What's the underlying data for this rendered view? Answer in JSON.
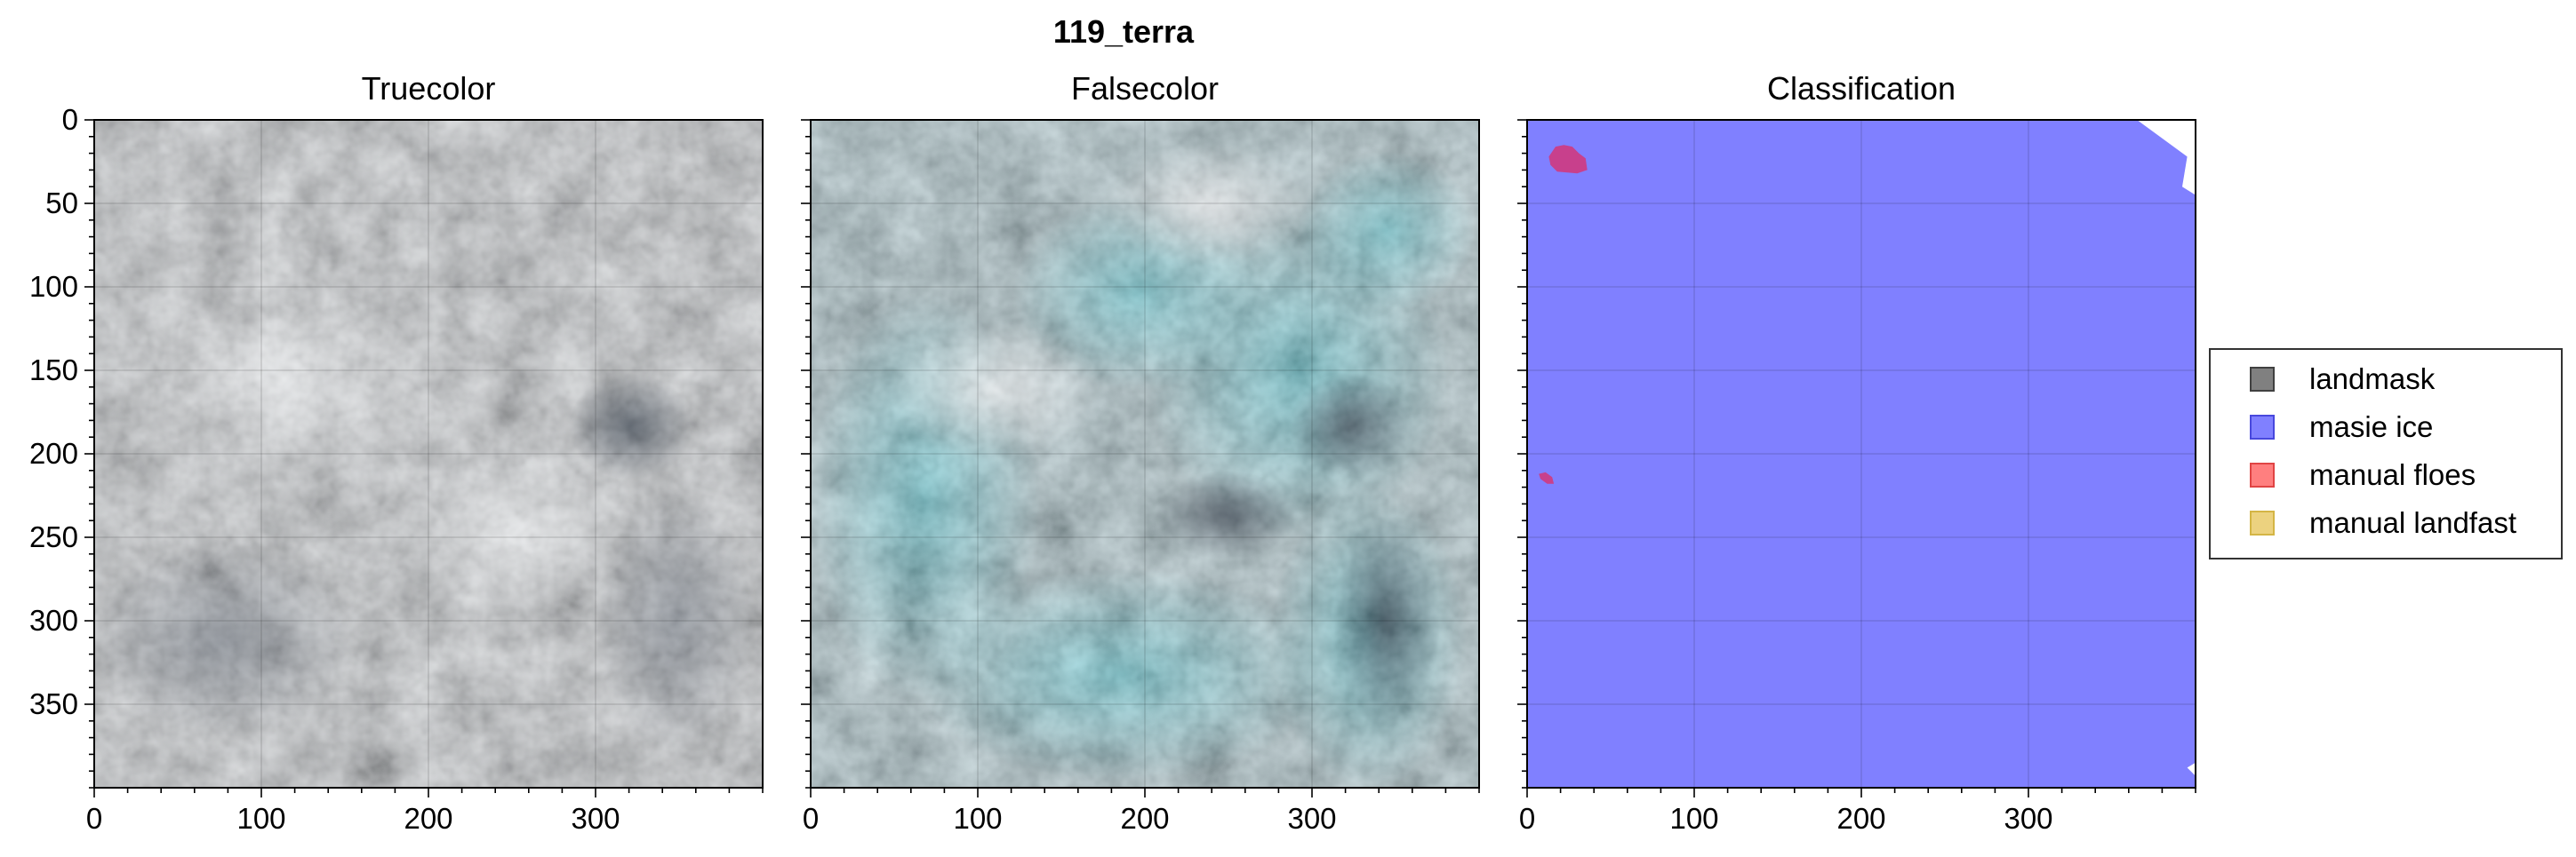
{
  "figure": {
    "suptitle": "119_terra"
  },
  "chart_data": [
    {
      "type": "heatmap",
      "title": "Truecolor",
      "xlim": [
        0,
        400
      ],
      "ylim": [
        400,
        0
      ],
      "xticks": [
        0,
        100,
        200,
        300
      ],
      "yticks": [
        0,
        50,
        100,
        150,
        200,
        250,
        300,
        350
      ],
      "show_xtick_labels": true,
      "show_ytick_labels": true,
      "grid": true,
      "image": "truecolor satellite image"
    },
    {
      "type": "heatmap",
      "title": "Falsecolor",
      "xlim": [
        0,
        400
      ],
      "ylim": [
        400,
        0
      ],
      "xticks": [
        0,
        100,
        200,
        300
      ],
      "yticks": [
        0,
        50,
        100,
        150,
        200,
        250,
        300,
        350
      ],
      "show_xtick_labels": true,
      "show_ytick_labels": false,
      "grid": true,
      "image": "falsecolor satellite image"
    },
    {
      "type": "heatmap",
      "title": "Classification",
      "xlim": [
        0,
        400
      ],
      "ylim": [
        400,
        0
      ],
      "xticks": [
        0,
        100,
        200,
        300
      ],
      "yticks": [
        0,
        50,
        100,
        150,
        200,
        250,
        300,
        350
      ],
      "show_xtick_labels": true,
      "show_ytick_labels": false,
      "grid": true,
      "regions": [
        {
          "class": "masie ice",
          "color": "#8080ff",
          "polygon": [
            [
              0,
              0
            ],
            [
              365,
              0
            ],
            [
              395,
              22
            ],
            [
              392,
              40
            ],
            [
              400,
              45
            ],
            [
              400,
              350
            ],
            [
              385,
              335
            ],
            [
              373,
              330
            ],
            [
              395,
              285
            ],
            [
              400,
              280
            ],
            [
              400,
              385
            ],
            [
              395,
              388
            ],
            [
              400,
              393
            ],
            [
              400,
              400
            ],
            [
              0,
              400
            ]
          ]
        },
        {
          "class": "manual floes",
          "color": "#c8408c",
          "polygon": [
            [
              13,
              22
            ],
            [
              17,
              16
            ],
            [
              22,
              15
            ],
            [
              27,
              16
            ],
            [
              31,
              20
            ],
            [
              35,
              23
            ],
            [
              36,
              30
            ],
            [
              30,
              32
            ],
            [
              18,
              31
            ],
            [
              14,
              27
            ]
          ]
        },
        {
          "class": "manual floes",
          "color": "#c8408c",
          "polygon": [
            [
              7,
              212
            ],
            [
              11,
              211
            ],
            [
              15,
              214
            ],
            [
              16,
              218
            ],
            [
              12,
              218
            ],
            [
              8,
              215
            ]
          ]
        }
      ]
    }
  ],
  "legend": {
    "placement": "right",
    "entries": [
      {
        "label": "landmask",
        "color": "#808080",
        "edge": "#404040"
      },
      {
        "label": "masie ice",
        "color": "#8080ff",
        "edge": "#4848dd"
      },
      {
        "label": "manual floes",
        "color": "#ff7f7f",
        "edge": "#e04444"
      },
      {
        "label": "manual landfast",
        "color": "#ecd27f",
        "edge": "#d4b545"
      }
    ]
  }
}
